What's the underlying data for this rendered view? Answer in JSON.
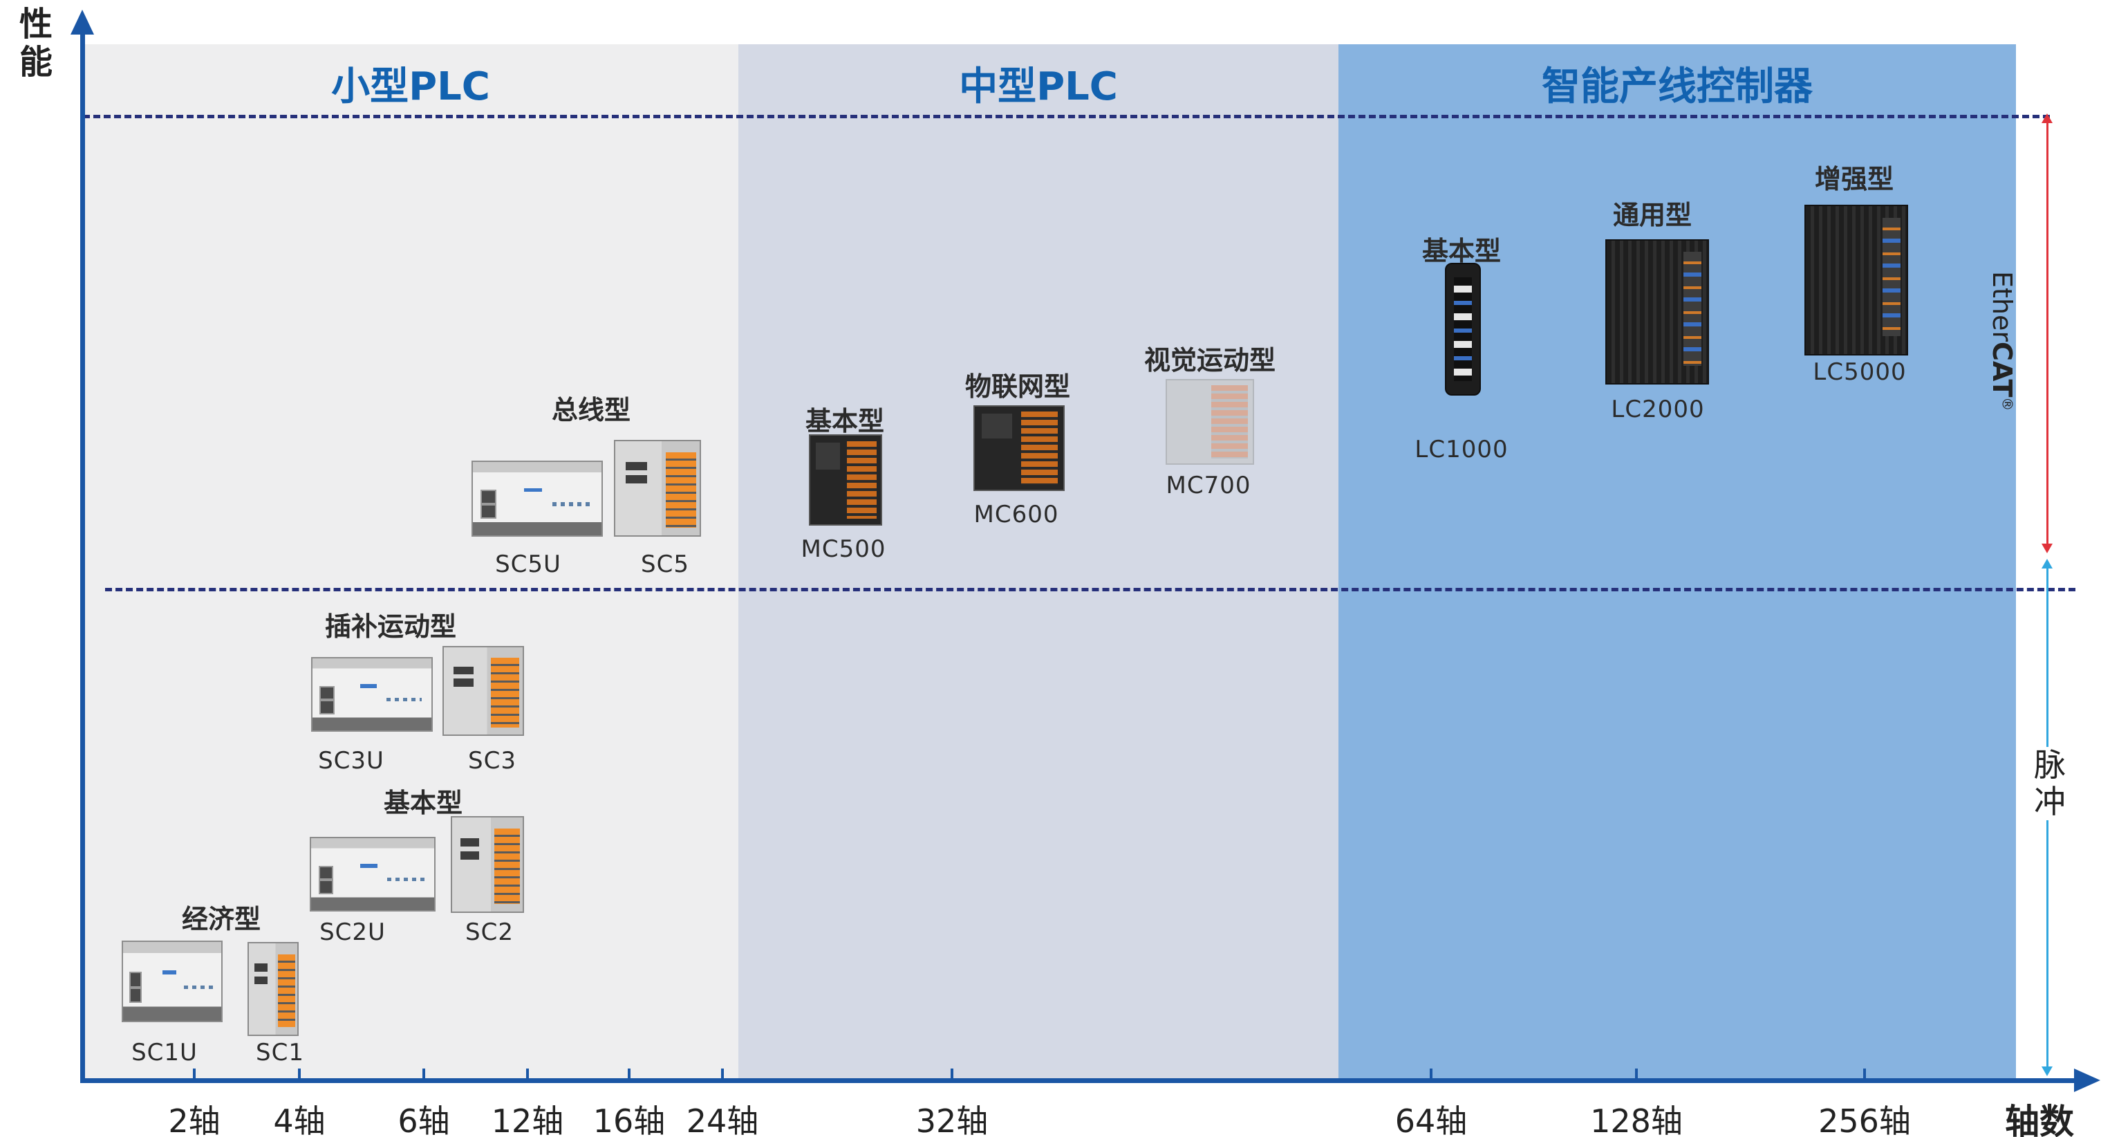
{
  "y_axis_label": "性\n能",
  "x_axis_label": "轴数",
  "bands": [
    {
      "title": "小型PLC"
    },
    {
      "title": "中型PLC"
    },
    {
      "title": "智能产线控制器"
    }
  ],
  "x_ticks": [
    "2轴",
    "4轴",
    "6轴",
    "12轴",
    "16轴",
    "24轴",
    "32轴",
    "64轴",
    "128轴",
    "256轴"
  ],
  "categories": {
    "economy": "经济型",
    "basic_small": "基本型",
    "interp_motion": "插补运动型",
    "bus_type": "总线型",
    "basic_mid": "基本型",
    "iot_type": "物联网型",
    "vision_motion": "视觉运动型",
    "basic_lc": "基本型",
    "general_lc": "通用型",
    "enhanced_lc": "增强型"
  },
  "models": {
    "sc1u": "SC1U",
    "sc1": "SC1",
    "sc2u": "SC2U",
    "sc2": "SC2",
    "sc3u": "SC3U",
    "sc3": "SC3",
    "sc5u": "SC5U",
    "sc5": "SC5",
    "mc500": "MC500",
    "mc600": "MC600",
    "mc700": "MC700",
    "lc1000": "LC1000",
    "lc2000": "LC2000",
    "lc5000": "LC5000"
  },
  "right_labels": {
    "ethercat_prefix": "Ether",
    "ethercat_bold": "CAT",
    "ethercat_mark": "®",
    "pulse": "脉\n冲"
  },
  "colors": {
    "small_band": "#eeeeef",
    "mid_band": "#d4d9e5",
    "smart_band": "#87b3e0",
    "title_blue": "#1262b0",
    "axis_blue": "#1a56a5",
    "dash_navy": "#26307a",
    "ethercat_arrow": "#e0323a",
    "pulse_arrow": "#31a7df"
  }
}
